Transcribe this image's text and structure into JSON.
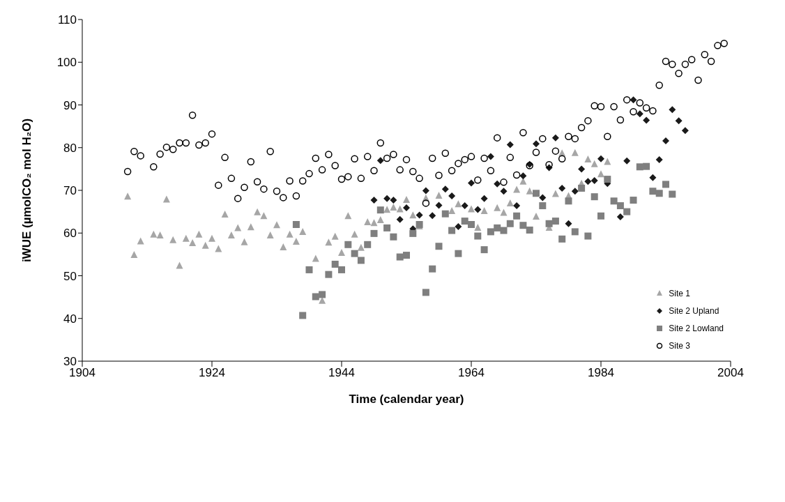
{
  "chart_data": {
    "type": "scatter",
    "xlabel": "Time (calendar year)",
    "ylabel": "iWUE (µmolCO₂ mol H₂O)",
    "xlim": [
      1904,
      2004
    ],
    "xticks": [
      1904,
      1924,
      1944,
      1964,
      1984,
      2004
    ],
    "ylim": [
      30,
      110
    ],
    "yticks": [
      30,
      40,
      50,
      60,
      70,
      80,
      90,
      100,
      110
    ],
    "grid": false,
    "legend": "bottom right",
    "series": [
      {
        "name": "Site 1",
        "color": "#a6a6a6",
        "marker": "triangle",
        "x": [
          1911,
          1912,
          1913,
          1915,
          1916,
          1917,
          1918,
          1919,
          1920,
          1921,
          1922,
          1923,
          1924,
          1925,
          1926,
          1927,
          1928,
          1929,
          1930,
          1931,
          1932,
          1933,
          1934,
          1935,
          1936,
          1937,
          1938,
          1940,
          1941,
          1942,
          1943,
          1944,
          1945,
          1946,
          1947,
          1948,
          1949,
          1950,
          1951,
          1952,
          1953,
          1954,
          1955,
          1956,
          1957,
          1959,
          1961,
          1962,
          1964,
          1965,
          1966,
          1968,
          1969,
          1970,
          1971,
          1972,
          1973,
          1974,
          1976,
          1977,
          1978,
          1979,
          1980,
          1981,
          1982,
          1983,
          1984,
          1985
        ],
        "values": [
          68.5,
          54.8,
          58.0,
          59.6,
          59.4,
          67.8,
          58.3,
          52.3,
          58.6,
          57.6,
          59.6,
          57.0,
          58.6,
          56.2,
          64.3,
          59.4,
          61.1,
          57.8,
          61.3,
          64.8,
          63.9,
          59.4,
          61.8,
          56.6,
          59.6,
          57.9,
          60.2,
          53.9,
          44.1,
          57.7,
          59.1,
          55.3,
          63.9,
          59.6,
          56.5,
          62.5,
          62.3,
          63.0,
          65.4,
          65.9,
          65.5,
          67.7,
          64.1,
          61.5,
          68.1,
          68.7,
          65.1,
          66.7,
          65.5,
          61.2,
          65.1,
          65.8,
          64.7,
          66.9,
          70.1,
          72.0,
          69.7,
          63.8,
          61.2,
          69.1,
          78.6,
          68.6,
          78.7,
          71.5,
          77.2,
          76.1,
          73.7,
          76.6
        ]
      },
      {
        "name": "Site 2 Upland",
        "color": "#1a1a1a",
        "marker": "diamond",
        "x": [
          1949,
          1950,
          1951,
          1952,
          1953,
          1954,
          1955,
          1956,
          1957,
          1958,
          1959,
          1960,
          1961,
          1962,
          1963,
          1964,
          1965,
          1966,
          1967,
          1968,
          1969,
          1970,
          1971,
          1972,
          1973,
          1974,
          1975,
          1976,
          1977,
          1978,
          1979,
          1980,
          1981,
          1982,
          1983,
          1984,
          1985,
          1987,
          1988,
          1989,
          1990,
          1991,
          1992,
          1993,
          1994,
          1995,
          1996,
          1997
        ],
        "values": [
          67.7,
          77.0,
          68.1,
          67.7,
          63.2,
          65.9,
          61.0,
          64.2,
          69.9,
          64.1,
          66.5,
          70.3,
          68.7,
          61.5,
          66.4,
          71.7,
          65.5,
          68.1,
          77.9,
          71.5,
          69.8,
          80.7,
          66.4,
          73.4,
          76.1,
          80.9,
          68.3,
          75.3,
          82.3,
          70.5,
          62.2,
          69.8,
          75.0,
          72.1,
          72.3,
          77.4,
          71.6,
          63.8,
          76.9,
          91.2,
          87.9,
          86.4,
          73.0,
          77.2,
          81.6,
          88.9,
          86.3,
          84.0
        ]
      },
      {
        "name": "Site 2 Lowland",
        "color": "#7f7f7f",
        "marker": "square",
        "x": [
          1937,
          1938,
          1939,
          1940,
          1941,
          1942,
          1943,
          1944,
          1945,
          1946,
          1947,
          1948,
          1949,
          1950,
          1951,
          1952,
          1953,
          1954,
          1955,
          1956,
          1957,
          1958,
          1959,
          1960,
          1961,
          1962,
          1963,
          1964,
          1965,
          1966,
          1967,
          1968,
          1969,
          1970,
          1971,
          1972,
          1973,
          1974,
          1975,
          1976,
          1977,
          1978,
          1979,
          1980,
          1981,
          1982,
          1983,
          1984,
          1985,
          1986,
          1987,
          1988,
          1989,
          1990,
          1991,
          1992,
          1993,
          1994,
          1995
        ],
        "values": [
          62.0,
          40.7,
          51.4,
          45.1,
          45.6,
          50.3,
          52.7,
          51.4,
          57.3,
          55.2,
          53.6,
          57.3,
          59.9,
          65.4,
          61.2,
          59.1,
          54.4,
          54.8,
          59.9,
          62.0,
          46.1,
          51.6,
          56.9,
          64.5,
          60.6,
          55.2,
          62.8,
          62.0,
          59.3,
          56.1,
          60.3,
          61.2,
          60.6,
          62.2,
          64.0,
          61.8,
          60.7,
          69.3,
          66.4,
          62.2,
          62.8,
          58.6,
          67.5,
          60.3,
          70.5,
          59.3,
          68.5,
          64.0,
          72.6,
          67.5,
          66.4,
          65.0,
          67.7,
          75.5,
          75.6,
          69.8,
          69.3,
          71.4,
          69.1
        ]
      },
      {
        "name": "Site 3",
        "color": "#000000",
        "marker": "circle",
        "x": [
          1911,
          1912,
          1913,
          1915,
          1916,
          1917,
          1918,
          1919,
          1920,
          1921,
          1922,
          1923,
          1924,
          1925,
          1926,
          1927,
          1928,
          1929,
          1930,
          1931,
          1932,
          1933,
          1934,
          1935,
          1936,
          1937,
          1938,
          1939,
          1940,
          1941,
          1942,
          1943,
          1944,
          1945,
          1946,
          1947,
          1948,
          1949,
          1950,
          1951,
          1952,
          1953,
          1954,
          1955,
          1956,
          1957,
          1958,
          1959,
          1960,
          1961,
          1962,
          1963,
          1964,
          1965,
          1966,
          1967,
          1968,
          1969,
          1970,
          1971,
          1972,
          1973,
          1974,
          1975,
          1976,
          1977,
          1978,
          1979,
          1980,
          1981,
          1982,
          1983,
          1984,
          1985,
          1986,
          1987,
          1988,
          1989,
          1990,
          1991,
          1992,
          1993,
          1994,
          1995,
          1996,
          1997,
          1998,
          1999,
          2000,
          2001,
          2002,
          2003
        ],
        "values": [
          74.4,
          79.1,
          78.1,
          75.5,
          78.5,
          80.1,
          79.6,
          81.1,
          81.1,
          87.6,
          80.6,
          81.1,
          83.2,
          71.2,
          77.7,
          72.8,
          68.1,
          70.7,
          76.7,
          72.0,
          70.3,
          79.1,
          69.8,
          68.3,
          72.2,
          68.7,
          72.2,
          73.9,
          77.5,
          74.8,
          78.4,
          75.8,
          72.6,
          73.2,
          77.4,
          72.8,
          77.9,
          74.6,
          81.1,
          77.5,
          78.4,
          74.8,
          77.2,
          74.4,
          72.8,
          67.0,
          77.5,
          73.5,
          78.7,
          74.6,
          76.3,
          77.2,
          77.9,
          72.4,
          77.5,
          74.6,
          82.3,
          71.9,
          77.7,
          73.6,
          83.5,
          75.8,
          78.9,
          82.1,
          76.0,
          79.2,
          77.4,
          82.6,
          82.1,
          84.7,
          86.3,
          89.8,
          89.6,
          82.6,
          89.6,
          86.5,
          91.2,
          88.4,
          90.5,
          89.3,
          88.6,
          94.6,
          100.2,
          99.5,
          97.4,
          99.5,
          100.6,
          95.8,
          101.8,
          100.2,
          103.9,
          104.4
        ]
      }
    ]
  }
}
